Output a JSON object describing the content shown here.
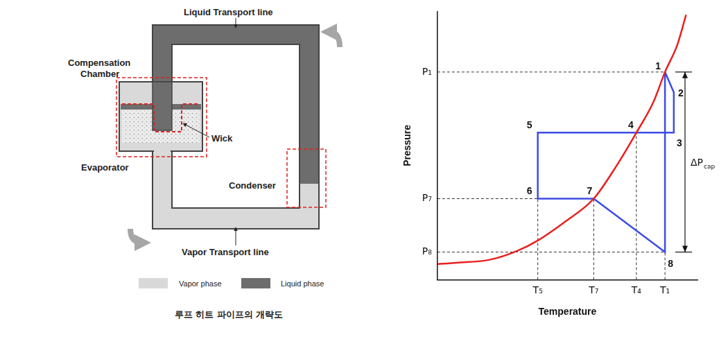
{
  "diagram": {
    "labels": {
      "liquid_line": "Liquid Transport line",
      "compensation_chamber": [
        "Compensation",
        "Chamber"
      ],
      "wick": "Wick",
      "evaporator": "Evaporator",
      "condenser": "Condenser",
      "vapor_line": "Vapor Transport line"
    },
    "legend": [
      {
        "label": "Vapor phase",
        "color": "#d9d9d9"
      },
      {
        "label": "Liquid phase",
        "color": "#6d6d6d"
      }
    ],
    "caption": "루프 히트 파이프의 개략도"
  },
  "chart_data": {
    "type": "line",
    "x_label": "Temperature",
    "y_label": "Pressure",
    "xlim": [
      0,
      100
    ],
    "ylim": [
      0,
      100
    ],
    "xticks": [
      {
        "value": 38.6,
        "label": "T₅"
      },
      {
        "value": 60.1,
        "label": "T₇"
      },
      {
        "value": 76.5,
        "label": "T₄"
      },
      {
        "value": 87.5,
        "label": "T₁"
      }
    ],
    "yticks": [
      {
        "value": 10.3,
        "label": "P₈"
      },
      {
        "value": 30.2,
        "label": "P₇"
      },
      {
        "value": 77.4,
        "label": "P₁"
      }
    ],
    "grid": false,
    "series": [
      {
        "color": "#e8201e",
        "line_style": "solid",
        "x": [
          0,
          7.3,
          20.4,
          30.8,
          38.6,
          49.1,
          60.1,
          68.7,
          76.5,
          83.0,
          87.5,
          92.2,
          95.6
        ],
        "values": [
          5.8,
          6.3,
          7.5,
          10.8,
          14.6,
          21.6,
          30.2,
          42.2,
          54.8,
          66.1,
          77.4,
          87.4,
          98.7
        ]
      },
      {
        "color": "#3c4ce6",
        "line_style": "solid",
        "x": [
          87.5,
          90.9,
          90.9,
          76.5,
          38.6,
          38.6,
          60.1,
          87.5
        ],
        "values": [
          77.4,
          69.8,
          54.8,
          54.8,
          54.8,
          30.2,
          30.2,
          10.3
        ],
        "point_labels": [
          "1",
          "2",
          "3",
          "4",
          "5",
          "6",
          "7",
          "8"
        ]
      }
    ],
    "annotations": [
      {
        "label": "ΔPcap",
        "from": 77.4,
        "to": 10.3
      }
    ]
  }
}
